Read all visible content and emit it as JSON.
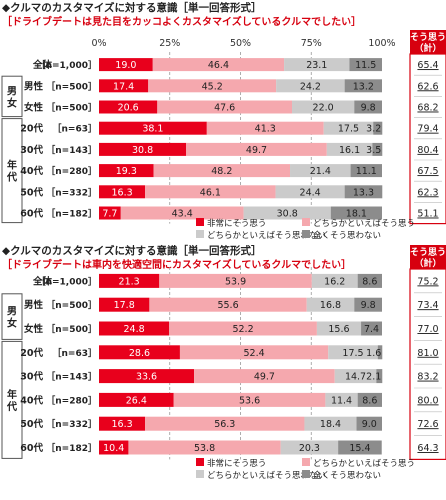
{
  "chart_data": [
    {
      "type": "bar",
      "title": "◆クルマのカスタマイズに対する意識［単一回答形式］",
      "subtitle": "［ドライブデートは見た目をカッコよくカスタマイズしているクルマでしたい］",
      "xlim": [
        0,
        100
      ],
      "xticks": [
        "0%",
        "25%",
        "50%",
        "75%",
        "100%"
      ],
      "summary_header": [
        "そう思う",
        "（計）"
      ],
      "series": [
        {
          "name": "非常にそう思う",
          "color": "#e8001c"
        },
        {
          "name": "どちらかといえばそう思う",
          "color": "#f5a8ae"
        },
        {
          "name": "どちらかといえばそう思わない",
          "color": "#cbcbcb"
        },
        {
          "name": "全くそう思わない",
          "color": "#8c8c8c"
        }
      ],
      "rows": [
        {
          "label": "全体",
          "n": "［n=1,000］",
          "values": [
            19.0,
            46.4,
            23.1,
            11.5
          ],
          "labels": [
            "19.0",
            "46.4",
            "23.1",
            "11.5"
          ],
          "total": "65.4"
        },
        {
          "label": "男性",
          "n": "［n=500］",
          "values": [
            17.4,
            45.2,
            24.2,
            13.2
          ],
          "labels": [
            "17.4",
            "45.2",
            "24.2",
            "13.2"
          ],
          "total": "62.6"
        },
        {
          "label": "女性",
          "n": "［n=500］",
          "values": [
            20.6,
            47.6,
            22.0,
            9.8
          ],
          "labels": [
            "20.6",
            "47.6",
            "22.0",
            "9.8"
          ],
          "total": "68.2"
        },
        {
          "label": "20代",
          "n": "［n=63］",
          "values": [
            38.1,
            41.3,
            17.5,
            3.2
          ],
          "labels": [
            "38.1",
            "41.3",
            "17.5",
            "3.2"
          ],
          "total": "79.4"
        },
        {
          "label": "30代",
          "n": "［n=143］",
          "values": [
            30.8,
            49.7,
            16.1,
            3.5
          ],
          "labels": [
            "30.8",
            "49.7",
            "16.1",
            "3.5"
          ],
          "total": "80.4"
        },
        {
          "label": "40代",
          "n": "［n=280］",
          "values": [
            19.3,
            48.2,
            21.4,
            11.1
          ],
          "labels": [
            "19.3",
            "48.2",
            "21.4",
            "11.1"
          ],
          "total": "67.5"
        },
        {
          "label": "50代",
          "n": "［n=332］",
          "values": [
            16.3,
            46.1,
            24.4,
            13.3
          ],
          "labels": [
            "16.3",
            "46.1",
            "24.4",
            "13.3"
          ],
          "total": "62.3"
        },
        {
          "label": "60代",
          "n": "［n=182］",
          "values": [
            7.7,
            43.4,
            30.8,
            18.1
          ],
          "labels": [
            "7.7",
            "43.4",
            "30.8",
            "18.1"
          ],
          "total": "51.1"
        }
      ],
      "groups": [
        {
          "label": "男女",
          "rows": [
            1,
            2
          ]
        },
        {
          "label": "年代",
          "rows": [
            3,
            7
          ]
        }
      ]
    },
    {
      "type": "bar",
      "title": "◆クルマのカスタマイズに対する意識［単一回答形式］",
      "subtitle": "［ドライブデートは車内を快適空間にカスタマイズしているクルマでしたい］",
      "xlim": [
        0,
        100
      ],
      "summary_header": [
        "そう思う",
        "（計）"
      ],
      "series": [
        {
          "name": "非常にそう思う",
          "color": "#e8001c"
        },
        {
          "name": "どちらかといえばそう思う",
          "color": "#f5a8ae"
        },
        {
          "name": "どちらかといえばそう思わない",
          "color": "#cbcbcb"
        },
        {
          "name": "全くそう思わない",
          "color": "#8c8c8c"
        }
      ],
      "rows": [
        {
          "label": "全体",
          "n": "［n=1,000］",
          "values": [
            21.3,
            53.9,
            16.2,
            8.6
          ],
          "labels": [
            "21.3",
            "53.9",
            "16.2",
            "8.6"
          ],
          "total": "75.2"
        },
        {
          "label": "男性",
          "n": "［n=500］",
          "values": [
            17.8,
            55.6,
            16.8,
            9.8
          ],
          "labels": [
            "17.8",
            "55.6",
            "16.8",
            "9.8"
          ],
          "total": "73.4"
        },
        {
          "label": "女性",
          "n": "［n=500］",
          "values": [
            24.8,
            52.2,
            15.6,
            7.4
          ],
          "labels": [
            "24.8",
            "52.2",
            "15.6",
            "7.4"
          ],
          "total": "77.0"
        },
        {
          "label": "20代",
          "n": "［n=63］",
          "values": [
            28.6,
            52.4,
            17.5,
            1.6
          ],
          "labels": [
            "28.6",
            "52.4",
            "17.5",
            "1.6"
          ],
          "total": "81.0"
        },
        {
          "label": "30代",
          "n": "［n=143］",
          "values": [
            33.6,
            49.7,
            14.7,
            2.1
          ],
          "labels": [
            "33.6",
            "49.7",
            "14.7",
            "2.1"
          ],
          "total": "83.2"
        },
        {
          "label": "40代",
          "n": "［n=280］",
          "values": [
            26.4,
            53.6,
            11.4,
            8.6
          ],
          "labels": [
            "26.4",
            "53.6",
            "11.4",
            "8.6"
          ],
          "total": "80.0"
        },
        {
          "label": "50代",
          "n": "［n=332］",
          "values": [
            16.3,
            56.3,
            18.4,
            9.0
          ],
          "labels": [
            "16.3",
            "56.3",
            "18.4",
            "9.0"
          ],
          "total": "72.6"
        },
        {
          "label": "60代",
          "n": "［n=182］",
          "values": [
            10.4,
            53.8,
            20.3,
            15.4
          ],
          "labels": [
            "10.4",
            "53.8",
            "20.3",
            "15.4"
          ],
          "total": "64.3"
        }
      ],
      "groups": [
        {
          "label": "男女",
          "rows": [
            1,
            2
          ]
        },
        {
          "label": "年代",
          "rows": [
            3,
            7
          ]
        }
      ]
    }
  ]
}
